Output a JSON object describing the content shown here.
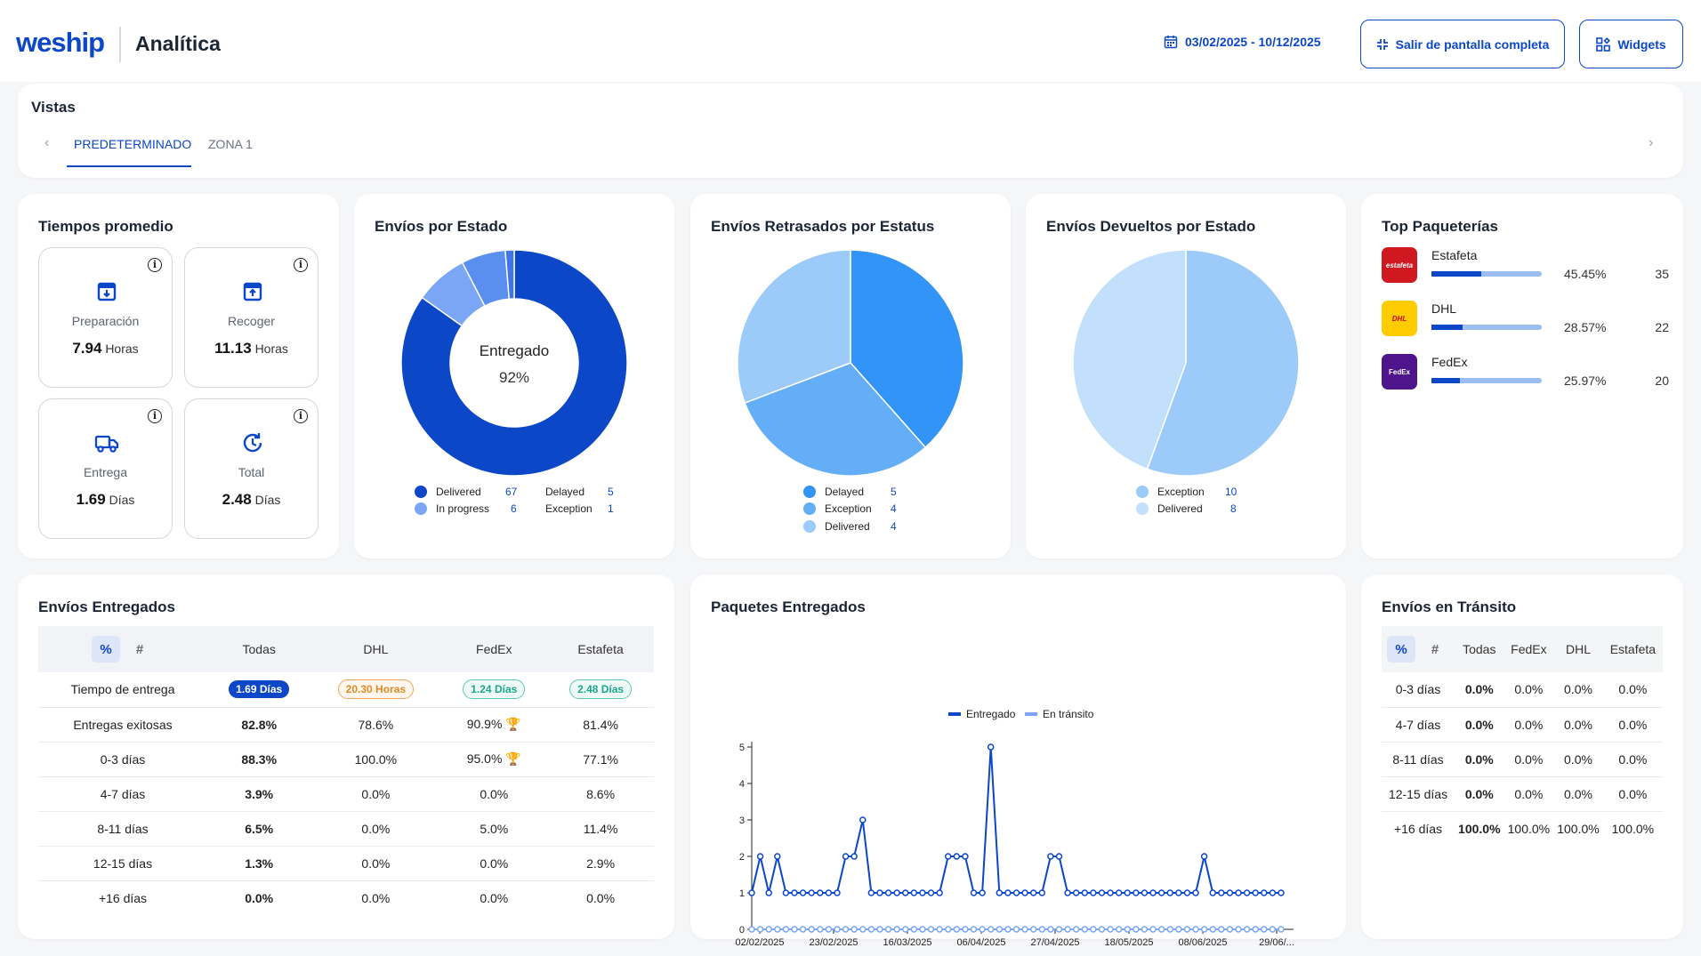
{
  "header": {
    "logo": "weship",
    "title": "Analítica",
    "date_range": "03/02/2025 - 10/12/2025",
    "exit_fullscreen": "Salir de pantalla completa",
    "widgets": "Widgets"
  },
  "vistas": {
    "title": "Vistas",
    "tabs": [
      "PREDETERMINADO",
      "ZONA 1"
    ]
  },
  "tiempos": {
    "title": "Tiempos promedio",
    "items": [
      {
        "label": "Preparación",
        "value": "7.94",
        "unit": "Horas"
      },
      {
        "label": "Recoger",
        "value": "11.13",
        "unit": "Horas"
      },
      {
        "label": "Entrega",
        "value": "1.69",
        "unit": "Días"
      },
      {
        "label": "Total",
        "value": "2.48",
        "unit": "Días"
      }
    ]
  },
  "envios_estado": {
    "title": "Envíos por Estado",
    "center_label": "Entregado",
    "center_value": "92%",
    "legend": [
      {
        "label": "Delivered",
        "value": "67",
        "color": "#0b47c6"
      },
      {
        "label": "In progress",
        "value": "6",
        "color": "#7aa6f5"
      },
      {
        "label": "Delayed",
        "value": "5"
      },
      {
        "label": "Exception",
        "value": "1"
      }
    ]
  },
  "retrasados": {
    "title": "Envíos Retrasados por Estatus",
    "legend": [
      {
        "label": "Delayed",
        "value": "5",
        "color": "#3394f7"
      },
      {
        "label": "Exception",
        "value": "4",
        "color": "#64aef8"
      },
      {
        "label": "Delivered",
        "value": "4",
        "color": "#9ccaf9"
      }
    ]
  },
  "devueltos": {
    "title": "Envíos Devueltos por Estado",
    "legend": [
      {
        "label": "Exception",
        "value": "10",
        "color": "#9ccaf9"
      },
      {
        "label": "Delivered",
        "value": "8",
        "color": "#c2dffc"
      }
    ]
  },
  "top": {
    "title": "Top Paqueterías",
    "carriers": [
      {
        "name": "Estafeta",
        "logo": "estafeta",
        "pct": "45.45%",
        "pct_value": 45.45,
        "count": "35",
        "color": "#d01820"
      },
      {
        "name": "DHL",
        "logo": "DHL",
        "pct": "28.57%",
        "pct_value": 28.57,
        "count": "22",
        "color": "#ffcc00"
      },
      {
        "name": "FedEx",
        "logo": "FedEx",
        "pct": "25.97%",
        "pct_value": 25.97,
        "count": "20",
        "color": "#4d148c"
      }
    ]
  },
  "entregados": {
    "title": "Envíos Entregados",
    "toggle": [
      "%",
      "#"
    ],
    "columns": [
      "Todas",
      "DHL",
      "FedEx",
      "Estafeta"
    ],
    "tiempo_label": "Tiempo de entrega",
    "tiempo_values": [
      "1.69 Días",
      "20.30 Horas",
      "1.24 Días",
      "2.48 Días"
    ],
    "rows": [
      {
        "label": "Entregas exitosas",
        "values": [
          "82.8%",
          "78.6%",
          "90.9%",
          "81.4%"
        ]
      },
      {
        "label": "0-3 días",
        "values": [
          "88.3%",
          "100.0%",
          "95.0%",
          "77.1%"
        ]
      },
      {
        "label": "4-7 días",
        "values": [
          "3.9%",
          "0.0%",
          "0.0%",
          "8.6%"
        ]
      },
      {
        "label": "8-11 días",
        "values": [
          "6.5%",
          "0.0%",
          "5.0%",
          "11.4%"
        ]
      },
      {
        "label": "12-15 días",
        "values": [
          "1.3%",
          "0.0%",
          "0.0%",
          "2.9%"
        ]
      },
      {
        "label": "+16 días",
        "values": [
          "0.0%",
          "0.0%",
          "0.0%",
          "0.0%"
        ]
      }
    ]
  },
  "paquetes": {
    "title": "Paquetes Entregados"
  },
  "transito": {
    "title": "Envíos en Tránsito",
    "toggle": [
      "%",
      "#"
    ],
    "columns": [
      "Todas",
      "FedEx",
      "DHL",
      "Estafeta"
    ],
    "rows": [
      {
        "label": "0-3 días",
        "values": [
          "0.0%",
          "0.0%",
          "0.0%",
          "0.0%"
        ]
      },
      {
        "label": "4-7 días",
        "values": [
          "0.0%",
          "0.0%",
          "0.0%",
          "0.0%"
        ]
      },
      {
        "label": "8-11 días",
        "values": [
          "0.0%",
          "0.0%",
          "0.0%",
          "0.0%"
        ]
      },
      {
        "label": "12-15 días",
        "values": [
          "0.0%",
          "0.0%",
          "0.0%",
          "0.0%"
        ]
      },
      {
        "label": "+16 días",
        "values": [
          "100.0%",
          "100.0%",
          "100.0%",
          "100.0%"
        ]
      }
    ]
  },
  "chart_data": [
    {
      "type": "pie",
      "title": "Envíos por Estado",
      "categories": [
        "Delivered",
        "In progress",
        "Delayed",
        "Exception"
      ],
      "values": [
        67,
        6,
        5,
        1
      ],
      "colors": [
        "#0b47c6",
        "#7aa6f5",
        "#5a8ff0",
        "#3f75e8"
      ]
    },
    {
      "type": "pie",
      "title": "Envíos Retrasados por Estatus",
      "categories": [
        "Delayed",
        "Exception",
        "Delivered"
      ],
      "values": [
        5,
        4,
        4
      ],
      "colors": [
        "#3394f7",
        "#64aef8",
        "#9ccaf9"
      ]
    },
    {
      "type": "pie",
      "title": "Envíos Devueltos por Estado",
      "categories": [
        "Exception",
        "Delivered"
      ],
      "values": [
        10,
        8
      ],
      "colors": [
        "#9ccaf9",
        "#c2dffc"
      ]
    },
    {
      "type": "line",
      "title": "Paquetes Entregados",
      "x_ticks": [
        "02/02/2025",
        "23/02/2025",
        "16/03/2025",
        "06/04/2025",
        "27/04/2025",
        "18/05/2025",
        "08/06/2025",
        "29/06/..."
      ],
      "ylim": [
        0,
        5
      ],
      "y_ticks": [
        "0",
        "1",
        "2",
        "3",
        "4",
        "5"
      ],
      "series": [
        {
          "name": "Entregado",
          "color": "#0b47c6",
          "values": [
            1,
            2,
            1,
            2,
            1,
            1,
            1,
            1,
            1,
            1,
            1,
            2,
            2,
            3,
            1,
            1,
            1,
            1,
            1,
            1,
            1,
            1,
            1,
            2,
            2,
            2,
            1,
            1,
            5,
            1,
            1,
            1,
            1,
            1,
            1,
            2,
            2,
            1,
            1,
            1,
            1,
            1,
            1,
            1,
            1,
            1,
            1,
            1,
            1,
            1,
            1,
            1,
            1,
            2,
            1,
            1,
            1,
            1,
            1,
            1,
            1,
            1,
            1
          ]
        },
        {
          "name": "En tránsito",
          "color": "#7aa6f5",
          "values": [
            0,
            0,
            0,
            0,
            0,
            0,
            0,
            0,
            0,
            0,
            0,
            0,
            0,
            0,
            0,
            0,
            0,
            0,
            0,
            0,
            0,
            0,
            0,
            0,
            0,
            0,
            0,
            0,
            0,
            0,
            0,
            0,
            0,
            0,
            0,
            0,
            0,
            0,
            0,
            0,
            0,
            0,
            0,
            0,
            0,
            0,
            0,
            0,
            0,
            0,
            0,
            0,
            0,
            0,
            0,
            0,
            0,
            0,
            0,
            0,
            0,
            0,
            0
          ]
        }
      ]
    }
  ]
}
